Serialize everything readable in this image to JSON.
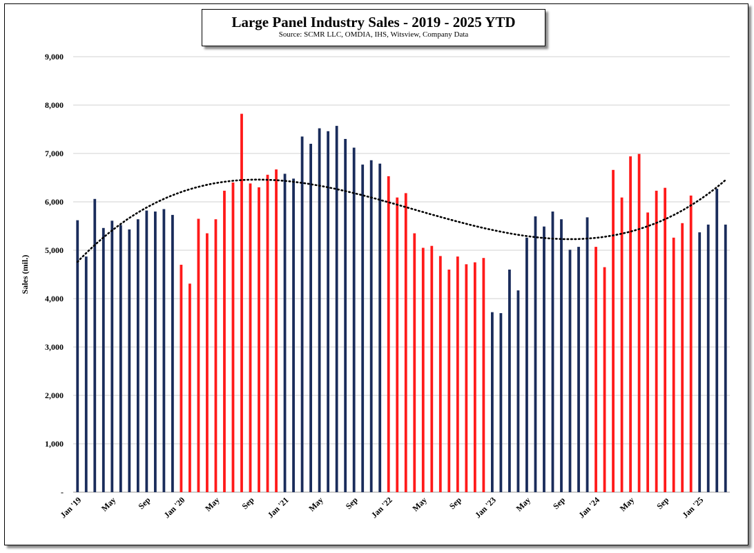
{
  "chart_data": {
    "type": "bar",
    "title": "Large Panel Industry Sales - 2019 - 2025 YTD",
    "subtitle": "Source: SCMR LLC, OMDIA, IHS, Witsview, Company Data",
    "xlabel": "",
    "ylabel": "Sales (mil.)",
    "ylim": [
      0,
      9000
    ],
    "y_ticks": [
      0,
      1000,
      2000,
      3000,
      4000,
      5000,
      6000,
      7000,
      8000,
      9000
    ],
    "y_tick_labels": [
      "-",
      "1,000",
      "2,000",
      "3,000",
      "4,000",
      "5,000",
      "6,000",
      "7,000",
      "8,000",
      "9,000"
    ],
    "x_tick_labels": [
      {
        "index": 0,
        "label": "Jan '19"
      },
      {
        "index": 4,
        "label": "May"
      },
      {
        "index": 8,
        "label": "Sep"
      },
      {
        "index": 12,
        "label": "Jan '20"
      },
      {
        "index": 16,
        "label": "May"
      },
      {
        "index": 20,
        "label": "Sep"
      },
      {
        "index": 24,
        "label": "Jan '21"
      },
      {
        "index": 28,
        "label": "May"
      },
      {
        "index": 32,
        "label": "Sep"
      },
      {
        "index": 36,
        "label": "Jan '22"
      },
      {
        "index": 40,
        "label": "May"
      },
      {
        "index": 44,
        "label": "Sep"
      },
      {
        "index": 48,
        "label": "Jan '23"
      },
      {
        "index": 52,
        "label": "May"
      },
      {
        "index": 56,
        "label": "Sep"
      },
      {
        "index": 60,
        "label": "Jan '24"
      },
      {
        "index": 64,
        "label": "May"
      },
      {
        "index": 68,
        "label": "Sep"
      },
      {
        "index": 72,
        "label": "Jan '25"
      }
    ],
    "colors": {
      "yoy_up": "#1a2c5b",
      "yoy_down": "#ff1a1a",
      "trend": "#000000"
    },
    "grid": true,
    "trendline": {
      "type": "polynomial",
      "style": "dotted"
    },
    "values": [
      5620,
      4870,
      6060,
      5460,
      5610,
      5520,
      5430,
      5640,
      5820,
      5800,
      5850,
      5730,
      4700,
      4310,
      5650,
      5350,
      5640,
      6230,
      6400,
      7820,
      6380,
      6300,
      6560,
      6670,
      6580,
      6480,
      7350,
      7200,
      7520,
      7460,
      7570,
      7300,
      7120,
      6770,
      6860,
      6790,
      6530,
      6090,
      6180,
      5350,
      5050,
      5090,
      4880,
      4600,
      4870,
      4710,
      4750,
      4840,
      3720,
      3700,
      4600,
      4170,
      5260,
      5700,
      5490,
      5800,
      5640,
      5010,
      5070,
      5680,
      5070,
      4650,
      6660,
      6090,
      6940,
      6990,
      5780,
      6230,
      6290,
      5260,
      5560,
      6130,
      5370,
      5530,
      6270,
      5530
    ],
    "bar_colors": [
      "yoy_up",
      "yoy_up",
      "yoy_up",
      "yoy_up",
      "yoy_up",
      "yoy_up",
      "yoy_up",
      "yoy_up",
      "yoy_up",
      "yoy_up",
      "yoy_up",
      "yoy_up",
      "yoy_down",
      "yoy_down",
      "yoy_down",
      "yoy_down",
      "yoy_down",
      "yoy_down",
      "yoy_down",
      "yoy_down",
      "yoy_down",
      "yoy_down",
      "yoy_down",
      "yoy_down",
      "yoy_up",
      "yoy_up",
      "yoy_up",
      "yoy_up",
      "yoy_up",
      "yoy_up",
      "yoy_up",
      "yoy_up",
      "yoy_up",
      "yoy_up",
      "yoy_up",
      "yoy_up",
      "yoy_down",
      "yoy_down",
      "yoy_down",
      "yoy_down",
      "yoy_down",
      "yoy_down",
      "yoy_down",
      "yoy_down",
      "yoy_down",
      "yoy_down",
      "yoy_down",
      "yoy_down",
      "yoy_up",
      "yoy_up",
      "yoy_up",
      "yoy_up",
      "yoy_up",
      "yoy_up",
      "yoy_up",
      "yoy_up",
      "yoy_up",
      "yoy_up",
      "yoy_up",
      "yoy_up",
      "yoy_down",
      "yoy_down",
      "yoy_down",
      "yoy_down",
      "yoy_down",
      "yoy_down",
      "yoy_down",
      "yoy_down",
      "yoy_down",
      "yoy_down",
      "yoy_down",
      "yoy_down",
      "yoy_up",
      "yoy_up",
      "yoy_up",
      "yoy_up"
    ]
  }
}
